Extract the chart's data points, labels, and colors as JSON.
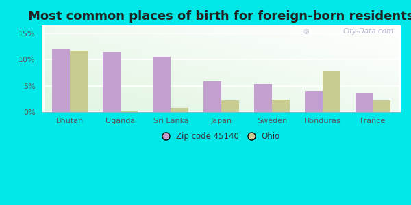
{
  "title": "Most common places of birth for foreign-born residents",
  "categories": [
    "Bhutan",
    "Uganda",
    "Sri Lanka",
    "Japan",
    "Sweden",
    "Honduras",
    "France"
  ],
  "zip_values": [
    12.0,
    11.5,
    10.5,
    5.8,
    5.3,
    4.0,
    3.6
  ],
  "ohio_values": [
    11.7,
    0.3,
    0.8,
    2.2,
    2.3,
    7.8,
    2.2
  ],
  "zip_color": "#c4a0d0",
  "ohio_color": "#c8cc90",
  "background_outer": "#00e8e8",
  "yticks": [
    0,
    5,
    10,
    15
  ],
  "ylim": [
    0,
    16.5
  ],
  "bar_width": 0.35,
  "legend_zip_label": "Zip code 45140",
  "legend_ohio_label": "Ohio",
  "title_fontsize": 13,
  "tick_label_fontsize": 8,
  "watermark": "City-Data.com"
}
